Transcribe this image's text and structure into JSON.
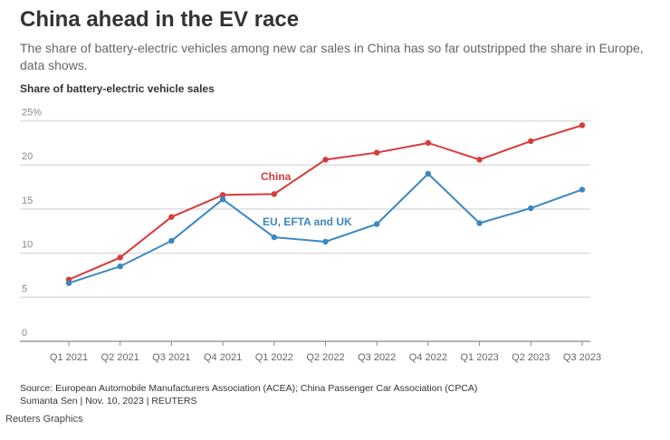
{
  "header": {
    "title": "China ahead in the EV race",
    "subtitle": "The share of battery-electric vehicles among new car sales in China has so far outstripped the share in Europe, data shows."
  },
  "chart_data": {
    "type": "line",
    "title": "Share of battery-electric vehicle sales",
    "xlabel": "",
    "ylabel": "",
    "categories": [
      "Q1 2021",
      "Q2 2021",
      "Q3 2021",
      "Q4 2021",
      "Q1 2022",
      "Q2 2022",
      "Q3 2022",
      "Q4 2022",
      "Q1 2023",
      "Q2 2023",
      "Q3 2023"
    ],
    "yticks": [
      {
        "v": 0,
        "label": "0"
      },
      {
        "v": 5,
        "label": "5"
      },
      {
        "v": 10,
        "label": "10"
      },
      {
        "v": 15,
        "label": "15"
      },
      {
        "v": 20,
        "label": "20"
      },
      {
        "v": 25,
        "label": "25%"
      }
    ],
    "ylim": [
      0,
      25
    ],
    "grid": true,
    "series": [
      {
        "name": "China",
        "color": "#d93a3a",
        "values": [
          7.0,
          9.5,
          14.1,
          16.6,
          16.7,
          20.6,
          21.4,
          22.5,
          20.6,
          22.7,
          24.5
        ]
      },
      {
        "name": "EU, EFTA and UK",
        "color": "#3a87c2",
        "values": [
          6.6,
          8.5,
          11.4,
          16.1,
          11.8,
          11.3,
          13.3,
          19.0,
          13.4,
          15.1,
          17.2
        ]
      }
    ]
  },
  "footer": {
    "source": "Source: European Automobile Manufacturers Association (ACEA); China Passenger Car Association (CPCA)",
    "byline": "Sumanta Sen | Nov. 10, 2023 | REUTERS",
    "brand": "Reuters Graphics"
  }
}
